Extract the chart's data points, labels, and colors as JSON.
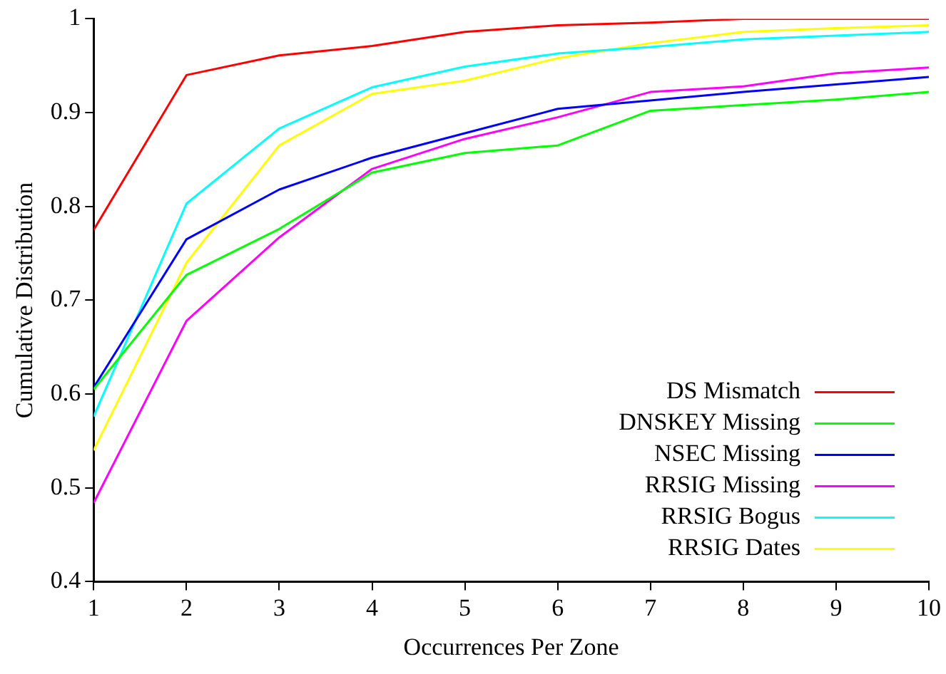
{
  "chart_data": {
    "type": "line",
    "xlabel": "Occurrences Per Zone",
    "ylabel": "Cumulative Distribution",
    "x": [
      1,
      2,
      3,
      4,
      5,
      6,
      7,
      8,
      9,
      10
    ],
    "xlim": [
      1,
      10
    ],
    "xticks": [
      1,
      2,
      3,
      4,
      5,
      6,
      7,
      8,
      9,
      10
    ],
    "ylim": [
      0.4,
      1
    ],
    "yticks": [
      0.4,
      0.5,
      0.6,
      0.7,
      0.8,
      0.9,
      1
    ],
    "grid": false,
    "legend": "bottom right",
    "marker": "none",
    "line_style": "solid",
    "series": [
      {
        "name": "DS Mismatch",
        "color": "#ff0000",
        "values": [
          0.775,
          0.94,
          0.961,
          0.971,
          0.986,
          0.993,
          0.996,
          1,
          1,
          1
        ]
      },
      {
        "name": "DNSKEY Missing",
        "color": "#00ff00",
        "values": [
          0.605,
          0.727,
          0.776,
          0.836,
          0.857,
          0.865,
          0.902,
          0.908,
          0.914,
          0.922
        ]
      },
      {
        "name": "NSEC Missing",
        "color": "#0000ff",
        "values": [
          0.607,
          0.765,
          0.818,
          0.852,
          0.878,
          0.904,
          0.913,
          0.922,
          0.93,
          0.938
        ]
      },
      {
        "name": "RRSIG Missing",
        "color": "#ff00ff",
        "values": [
          0.484,
          0.678,
          0.767,
          0.84,
          0.872,
          0.895,
          0.922,
          0.928,
          0.942,
          0.948
        ]
      },
      {
        "name": "RRSIG Bogus",
        "color": "#00ffff",
        "values": [
          0.576,
          0.803,
          0.883,
          0.927,
          0.949,
          0.963,
          0.97,
          0.978,
          0.982,
          0.986
        ]
      },
      {
        "name": "RRSIG Dates",
        "color": "#ffff00",
        "values": [
          0.54,
          0.74,
          0.865,
          0.92,
          0.934,
          0.958,
          0.974,
          0.986,
          0.99,
          0.993
        ]
      }
    ]
  }
}
